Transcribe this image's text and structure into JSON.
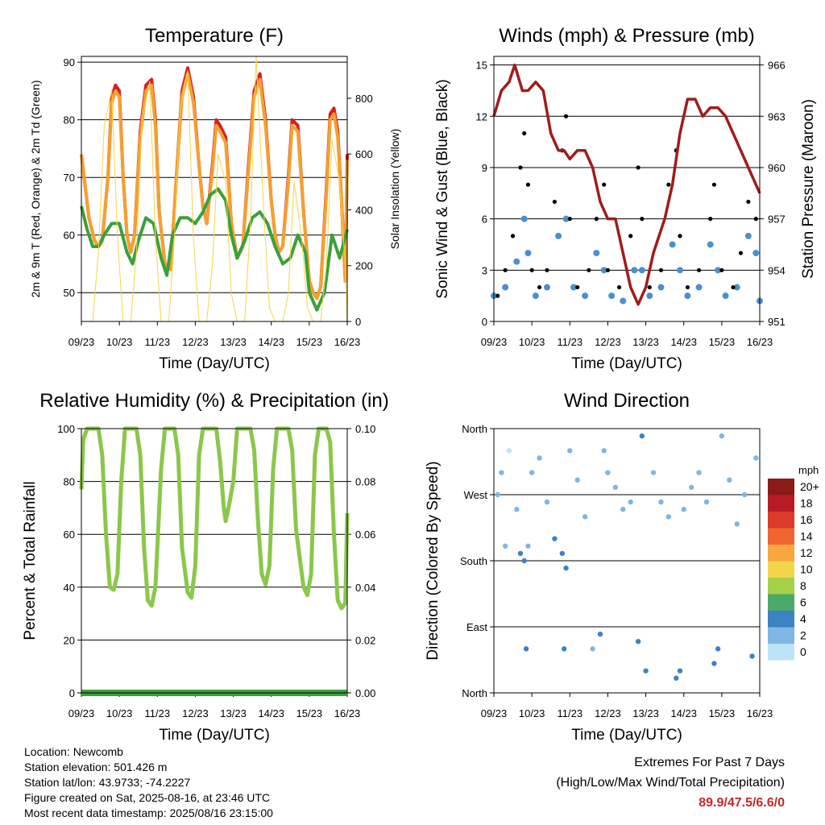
{
  "chart_data": [
    {
      "type": "line",
      "title": "Temperature (F)",
      "xlabel": "Time (Day/UTC)",
      "ylabel": "2m & 9m T (Red, Orange) & 2m Td (Green)",
      "ylabel_right": "Solar Insolation (Yellow)",
      "x_ticks": [
        "09/23",
        "10/23",
        "11/23",
        "12/23",
        "13/23",
        "14/23",
        "15/23",
        "16/23"
      ],
      "ylim": [
        45,
        91
      ],
      "y_ticks": [
        50,
        60,
        70,
        80,
        90
      ],
      "y2lim": [
        0,
        950
      ],
      "y2_ticks": [
        0,
        200,
        400,
        600,
        800
      ],
      "series": [
        {
          "name": "2m T",
          "color": "#d62020",
          "x": [
            0,
            0.2,
            0.35,
            0.45,
            0.55,
            0.7,
            0.8,
            0.9,
            1.0,
            1.1,
            1.2,
            1.3,
            1.4,
            1.55,
            1.7,
            1.85,
            1.95,
            2.05,
            2.2,
            2.35,
            2.5,
            2.65,
            2.8,
            2.95,
            3.1,
            3.2,
            3.3,
            3.45,
            3.55,
            3.65,
            3.8,
            3.95,
            4.1,
            4.25,
            4.4,
            4.55,
            4.7,
            4.85,
            5.0,
            5.1,
            5.2,
            5.3,
            5.45,
            5.55,
            5.7,
            5.85,
            6.0,
            6.1,
            6.2,
            6.3,
            6.45,
            6.55,
            6.65,
            6.75,
            6.85,
            6.95,
            7.0
          ],
          "y": [
            74,
            63,
            59,
            58,
            59,
            70,
            84,
            86,
            85,
            70,
            60,
            57,
            60,
            78,
            86,
            87,
            80,
            64,
            55,
            54,
            70,
            85,
            89,
            84,
            72,
            65,
            62,
            72,
            80,
            79,
            77,
            62,
            56,
            58,
            72,
            85,
            88,
            80,
            66,
            60,
            57,
            58,
            70,
            80,
            79,
            64,
            52,
            50,
            49,
            51,
            68,
            81,
            82,
            78,
            66,
            52,
            74
          ]
        },
        {
          "name": "9m T",
          "color": "#f4a030",
          "x": [
            0,
            0.2,
            0.35,
            0.45,
            0.55,
            0.7,
            0.8,
            0.9,
            1.0,
            1.1,
            1.2,
            1.3,
            1.4,
            1.55,
            1.7,
            1.85,
            1.95,
            2.05,
            2.2,
            2.35,
            2.5,
            2.65,
            2.8,
            2.95,
            3.1,
            3.2,
            3.3,
            3.45,
            3.55,
            3.65,
            3.8,
            3.95,
            4.1,
            4.25,
            4.4,
            4.55,
            4.7,
            4.85,
            5.0,
            5.1,
            5.2,
            5.3,
            5.45,
            5.55,
            5.7,
            5.85,
            6.0,
            6.1,
            6.2,
            6.3,
            6.45,
            6.55,
            6.65,
            6.75,
            6.85,
            6.95,
            7.0
          ],
          "y": [
            74,
            63,
            59,
            58,
            59,
            70,
            83,
            85,
            84,
            70,
            60,
            57,
            60,
            77,
            85,
            86,
            79,
            64,
            55,
            54,
            70,
            84,
            88,
            83,
            72,
            65,
            62,
            71,
            79,
            78,
            76,
            62,
            56,
            58,
            71,
            84,
            87,
            79,
            66,
            60,
            57,
            58,
            69,
            79,
            78,
            64,
            52,
            50,
            49,
            51,
            67,
            80,
            81,
            77,
            66,
            52,
            73
          ]
        },
        {
          "name": "2m Td",
          "color": "#3aa03a",
          "x": [
            0,
            0.15,
            0.3,
            0.45,
            0.6,
            0.8,
            1.0,
            1.2,
            1.35,
            1.5,
            1.7,
            1.9,
            2.1,
            2.25,
            2.4,
            2.6,
            2.8,
            3.0,
            3.2,
            3.4,
            3.6,
            3.8,
            3.95,
            4.1,
            4.3,
            4.5,
            4.7,
            4.9,
            5.1,
            5.3,
            5.5,
            5.7,
            5.9,
            6.0,
            6.2,
            6.4,
            6.6,
            6.8,
            7.0
          ],
          "y": [
            65,
            61,
            58,
            58,
            60,
            62,
            62,
            57,
            55,
            59,
            63,
            62,
            56,
            53,
            60,
            63,
            63,
            62,
            64,
            67,
            68,
            66,
            60,
            56,
            59,
            63,
            64,
            62,
            58,
            55,
            56,
            60,
            57,
            50,
            47,
            50,
            60,
            56,
            61
          ]
        },
        {
          "name": "Solar Insolation",
          "color": "#f5d547",
          "axis": "right",
          "x": [
            0,
            0.3,
            0.45,
            0.6,
            0.8,
            0.95,
            1.1,
            1.3,
            1.45,
            1.6,
            1.8,
            1.95,
            2.1,
            2.3,
            2.45,
            2.6,
            2.8,
            2.95,
            3.1,
            3.3,
            3.45,
            3.6,
            3.8,
            3.95,
            4.1,
            4.3,
            4.45,
            4.6,
            4.8,
            4.95,
            5.1,
            5.3,
            5.45,
            5.6,
            5.8,
            5.95,
            6.1,
            6.3,
            6.45,
            6.6,
            6.8,
            6.95,
            7.0
          ],
          "y": [
            0,
            0,
            250,
            700,
            830,
            300,
            0,
            0,
            250,
            720,
            860,
            300,
            0,
            0,
            300,
            760,
            900,
            300,
            0,
            0,
            200,
            600,
            500,
            100,
            0,
            0,
            350,
            950,
            400,
            50,
            0,
            0,
            100,
            500,
            300,
            50,
            0,
            0,
            200,
            650,
            500,
            200,
            0
          ]
        }
      ]
    },
    {
      "type": "scatter",
      "title": "Winds (mph) & Pressure (mb)",
      "xlabel": "Time (Day/UTC)",
      "ylabel": "Sonic Wind & Gust (Blue, Black)",
      "ylabel_right": "Station Pressure (Maroon)",
      "x_ticks": [
        "09/23",
        "10/23",
        "11/23",
        "12/23",
        "13/23",
        "14/23",
        "15/23",
        "16/23"
      ],
      "ylim": [
        0,
        15.5
      ],
      "y_ticks": [
        0,
        3,
        6,
        9,
        12,
        15
      ],
      "y2lim": [
        951,
        966.5
      ],
      "y2_ticks": [
        951,
        954,
        957,
        960,
        963,
        966
      ],
      "series": [
        {
          "name": "Wind",
          "color": "#4a90d0",
          "x": [
            0,
            0.3,
            0.6,
            0.8,
            0.9,
            1.1,
            1.4,
            1.7,
            1.9,
            2.1,
            2.4,
            2.7,
            2.9,
            3.1,
            3.4,
            3.7,
            3.9,
            4.1,
            4.4,
            4.7,
            4.9,
            5.1,
            5.4,
            5.7,
            5.9,
            6.1,
            6.4,
            6.7,
            6.9,
            7.0
          ],
          "y": [
            1.5,
            2,
            3.5,
            6,
            4,
            1.5,
            2,
            5,
            6,
            2,
            1.5,
            4,
            3,
            1.5,
            1.2,
            3,
            3,
            1.5,
            2,
            4.5,
            3,
            1.5,
            2,
            4.5,
            3,
            1.5,
            2,
            5,
            4,
            1.2
          ]
        },
        {
          "name": "Gust",
          "color": "#000000",
          "x": [
            0.1,
            0.3,
            0.5,
            0.7,
            0.8,
            0.9,
            1.0,
            1.2,
            1.4,
            1.6,
            1.8,
            1.9,
            2.0,
            2.2,
            2.5,
            2.7,
            2.9,
            3.0,
            3.3,
            3.6,
            3.8,
            3.9,
            4.1,
            4.4,
            4.6,
            4.8,
            4.9,
            5.1,
            5.4,
            5.7,
            5.8,
            6.0,
            6.3,
            6.5,
            6.7,
            6.9
          ],
          "y": [
            1.5,
            3,
            5,
            9,
            11,
            8,
            3,
            2,
            3,
            7,
            10,
            12,
            6,
            2,
            3,
            6,
            8,
            3,
            2,
            5,
            9,
            6,
            2,
            3,
            8,
            10,
            5,
            2,
            3,
            6,
            8,
            3,
            2,
            4,
            7,
            6
          ]
        },
        {
          "name": "Station Pressure",
          "color": "#a01c1c",
          "axis": "right",
          "x": [
            0,
            0.2,
            0.4,
            0.55,
            0.75,
            0.9,
            1.1,
            1.3,
            1.5,
            1.7,
            1.85,
            2.0,
            2.2,
            2.4,
            2.6,
            2.8,
            3.0,
            3.2,
            3.4,
            3.6,
            3.8,
            4.0,
            4.2,
            4.5,
            4.7,
            4.9,
            5.1,
            5.3,
            5.5,
            5.7,
            5.9,
            6.1,
            6.3,
            6.5,
            6.7,
            6.9,
            7.0
          ],
          "y": [
            963,
            964.5,
            965,
            966,
            964.5,
            964.5,
            965,
            964.5,
            962,
            961,
            961,
            960.5,
            961,
            961,
            960,
            958,
            957,
            957,
            955,
            953,
            952,
            953,
            955,
            957,
            959,
            962,
            964,
            964,
            963,
            963.5,
            963.5,
            963,
            962,
            961,
            960,
            959,
            958.5
          ]
        }
      ]
    },
    {
      "type": "line",
      "title": "Relative Humidity (%) & Precipitation (in)",
      "xlabel": "Time (Day/UTC)",
      "ylabel": "Percent & Total Rainfall",
      "x_ticks": [
        "09/23",
        "10/23",
        "11/23",
        "12/23",
        "13/23",
        "14/23",
        "15/23",
        "16/23"
      ],
      "ylim": [
        0,
        100
      ],
      "y_ticks": [
        0,
        20,
        40,
        60,
        80,
        100
      ],
      "y2lim": [
        0,
        0.1
      ],
      "y2_ticks": [
        "0.00",
        "0.02",
        "0.04",
        "0.06",
        "0.08",
        "0.10"
      ],
      "series": [
        {
          "name": "Relative Humidity",
          "color": "#8ac74a",
          "x": [
            0,
            0.05,
            0.15,
            0.25,
            0.45,
            0.55,
            0.65,
            0.75,
            0.85,
            0.95,
            1.05,
            1.15,
            1.25,
            1.45,
            1.55,
            1.65,
            1.75,
            1.85,
            1.95,
            2.1,
            2.2,
            2.45,
            2.55,
            2.65,
            2.8,
            2.9,
            3.0,
            3.1,
            3.2,
            3.45,
            3.55,
            3.65,
            3.75,
            3.8,
            3.9,
            4.0,
            4.1,
            4.2,
            4.45,
            4.55,
            4.65,
            4.75,
            4.85,
            4.95,
            5.05,
            5.15,
            5.25,
            5.45,
            5.55,
            5.65,
            5.85,
            5.95,
            6.05,
            6.15,
            6.25,
            6.45,
            6.55,
            6.65,
            6.75,
            6.85,
            6.95,
            7.0
          ],
          "y": [
            77,
            96,
            100,
            100,
            100,
            90,
            60,
            40,
            39,
            45,
            80,
            100,
            100,
            100,
            90,
            55,
            35,
            33,
            40,
            85,
            100,
            100,
            90,
            55,
            38,
            36,
            48,
            90,
            100,
            100,
            100,
            88,
            70,
            65,
            72,
            80,
            100,
            100,
            100,
            92,
            65,
            45,
            41,
            48,
            85,
            100,
            100,
            100,
            92,
            62,
            40,
            37,
            45,
            90,
            100,
            100,
            95,
            60,
            35,
            32,
            34,
            68
          ]
        },
        {
          "name": "Precipitation",
          "color": "#3aa03a",
          "axis": "right",
          "x": [
            0,
            7.0
          ],
          "y": [
            0,
            0
          ]
        }
      ]
    },
    {
      "type": "scatter",
      "title": "Wind Direction",
      "xlabel": "Time (Day/UTC)",
      "ylabel": "Direction (Colored By Speed)",
      "x_ticks": [
        "09/23",
        "10/23",
        "11/23",
        "12/23",
        "13/23",
        "14/23",
        "15/23",
        "16/23"
      ],
      "y_ticks": [
        "North",
        "East",
        "South",
        "West",
        "North"
      ],
      "ylim": [
        0,
        360
      ],
      "legend_title": "mph",
      "legend": [
        {
          "label": "20+",
          "color": "#8b1a1a"
        },
        {
          "label": "18",
          "color": "#b81c22"
        },
        {
          "label": "16",
          "color": "#dc3a2a"
        },
        {
          "label": "14",
          "color": "#f06530"
        },
        {
          "label": "12",
          "color": "#f7a640"
        },
        {
          "label": "10",
          "color": "#f2d64a"
        },
        {
          "label": "8",
          "color": "#a6cf4a"
        },
        {
          "label": "6",
          "color": "#4aaa6a"
        },
        {
          "label": "4",
          "color": "#3c82c4"
        },
        {
          "label": "2",
          "color": "#7fb6e4"
        },
        {
          "label": "0",
          "color": "#bde3f7"
        }
      ],
      "series": [
        {
          "name": "Direction",
          "x": [
            0.1,
            0.2,
            0.3,
            0.4,
            0.6,
            0.7,
            0.8,
            0.85,
            0.9,
            1.0,
            1.2,
            1.4,
            1.6,
            1.8,
            1.85,
            1.9,
            2.0,
            2.2,
            2.4,
            2.6,
            2.8,
            2.9,
            3.0,
            3.2,
            3.4,
            3.6,
            3.8,
            3.9,
            4.0,
            4.2,
            4.4,
            4.6,
            4.8,
            4.9,
            5.0,
            5.2,
            5.4,
            5.6,
            5.8,
            5.9,
            6.0,
            6.2,
            6.4,
            6.6,
            6.8,
            6.9
          ],
          "y": [
            270,
            300,
            200,
            330,
            250,
            190,
            180,
            60,
            200,
            300,
            320,
            260,
            210,
            190,
            60,
            170,
            330,
            290,
            240,
            60,
            80,
            330,
            300,
            280,
            250,
            260,
            70,
            350,
            30,
            300,
            260,
            240,
            20,
            30,
            250,
            280,
            300,
            260,
            40,
            60,
            350,
            290,
            230,
            270,
            50,
            320
          ],
          "speed": [
            1,
            1,
            2,
            0,
            1,
            3,
            4,
            3,
            2,
            1,
            1,
            2,
            3,
            4,
            3,
            4,
            2,
            1,
            1,
            2,
            3,
            1,
            1,
            2,
            1,
            2,
            3,
            3,
            4,
            1,
            2,
            1,
            3,
            4,
            1,
            1,
            2,
            1,
            3,
            3,
            1,
            1,
            2,
            1,
            3,
            2
          ]
        }
      ]
    }
  ],
  "station_info": {
    "location": "Location: Newcomb",
    "elevation": "Station elevation: 501.426 m",
    "latlon": "Station lat/lon: 43.9733; -74.2227",
    "created": "Figure created on Sat, 2025-08-16, at 23:46 UTC",
    "latest": "Most recent data timestamp: 2025/08/16 23:15:00"
  },
  "extremes": {
    "title": "Extremes For Past 7 Days",
    "subtitle": "(High/Low/Max Wind/Total Precipitation)",
    "values": "89.9/47.5/6.6/0"
  }
}
